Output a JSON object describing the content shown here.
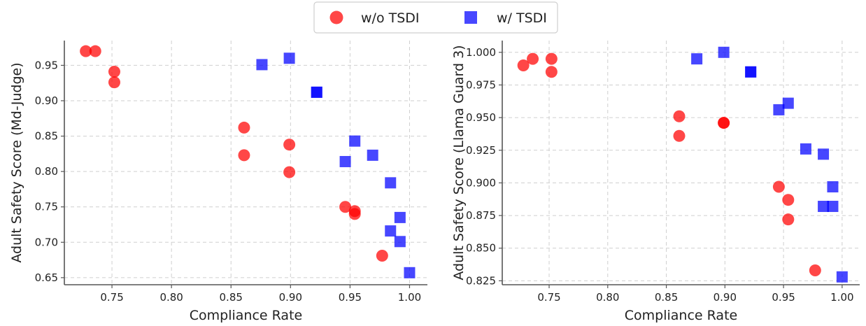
{
  "legend": {
    "items": [
      {
        "label": "w/o TSDI",
        "marker": "circle",
        "color": "#ff0000"
      },
      {
        "label": "w/ TSDI",
        "marker": "square",
        "color": "#0000ff"
      }
    ]
  },
  "chart_data": [
    {
      "type": "scatter",
      "xlabel": "Compliance Rate",
      "ylabel": "Adult Safety Score (Md-Judge)",
      "xlim": [
        0.71,
        1.015
      ],
      "ylim": [
        0.64,
        0.985
      ],
      "xticks": [
        0.75,
        0.8,
        0.85,
        0.9,
        0.95,
        1.0
      ],
      "xtick_labels": [
        "0.75",
        "0.80",
        "0.85",
        "0.90",
        "0.95",
        "1.00"
      ],
      "yticks": [
        0.65,
        0.7,
        0.75,
        0.8,
        0.85,
        0.9,
        0.95
      ],
      "ytick_labels": [
        "0.65",
        "0.70",
        "0.75",
        "0.80",
        "0.85",
        "0.90",
        "0.95"
      ],
      "grid": true,
      "series": [
        {
          "name": "w/o TSDI",
          "marker": "circle",
          "color": "#ff0000",
          "points": [
            [
              0.728,
              0.97
            ],
            [
              0.736,
              0.97
            ],
            [
              0.752,
              0.941
            ],
            [
              0.752,
              0.926
            ],
            [
              0.861,
              0.862
            ],
            [
              0.861,
              0.823
            ],
            [
              0.899,
              0.838
            ],
            [
              0.899,
              0.799
            ],
            [
              0.946,
              0.75
            ],
            [
              0.954,
              0.744
            ],
            [
              0.954,
              0.74
            ],
            [
              0.977,
              0.681
            ]
          ]
        },
        {
          "name": "w/ TSDI",
          "marker": "square",
          "color": "#0000ff",
          "points": [
            [
              0.876,
              0.951
            ],
            [
              0.899,
              0.96
            ],
            [
              0.922,
              0.912
            ],
            [
              0.922,
              0.912
            ],
            [
              0.954,
              0.843
            ],
            [
              0.946,
              0.814
            ],
            [
              0.969,
              0.823
            ],
            [
              0.984,
              0.784
            ],
            [
              0.992,
              0.735
            ],
            [
              0.984,
              0.716
            ],
            [
              0.992,
              0.701
            ],
            [
              1.0,
              0.657
            ]
          ]
        }
      ]
    },
    {
      "type": "scatter",
      "xlabel": "Compliance Rate",
      "ylabel": "Adult Safety Score (Llama Guard 3)",
      "xlim": [
        0.71,
        1.015
      ],
      "ylim": [
        0.822,
        1.009
      ],
      "xticks": [
        0.75,
        0.8,
        0.85,
        0.9,
        0.95,
        1.0
      ],
      "xtick_labels": [
        "0.75",
        "0.80",
        "0.85",
        "0.90",
        "0.95",
        "1.00"
      ],
      "yticks": [
        0.825,
        0.85,
        0.875,
        0.9,
        0.925,
        0.95,
        0.975,
        1.0
      ],
      "ytick_labels": [
        "0.825",
        "0.850",
        "0.875",
        "0.900",
        "0.925",
        "0.950",
        "0.975",
        "1.000"
      ],
      "grid": true,
      "series": [
        {
          "name": "w/o TSDI",
          "marker": "circle",
          "color": "#ff0000",
          "points": [
            [
              0.728,
              0.99
            ],
            [
              0.736,
              0.995
            ],
            [
              0.752,
              0.995
            ],
            [
              0.752,
              0.985
            ],
            [
              0.861,
              0.951
            ],
            [
              0.861,
              0.936
            ],
            [
              0.899,
              0.946
            ],
            [
              0.899,
              0.946
            ],
            [
              0.946,
              0.897
            ],
            [
              0.954,
              0.887
            ],
            [
              0.954,
              0.872
            ],
            [
              0.977,
              0.833
            ]
          ]
        },
        {
          "name": "w/ TSDI",
          "marker": "square",
          "color": "#0000ff",
          "points": [
            [
              0.876,
              0.995
            ],
            [
              0.899,
              1.0
            ],
            [
              0.922,
              0.985
            ],
            [
              0.922,
              0.985
            ],
            [
              0.954,
              0.961
            ],
            [
              0.946,
              0.956
            ],
            [
              0.969,
              0.926
            ],
            [
              0.984,
              0.922
            ],
            [
              0.992,
              0.897
            ],
            [
              0.984,
              0.882
            ],
            [
              0.992,
              0.882
            ],
            [
              1.0,
              0.828
            ]
          ]
        }
      ]
    }
  ]
}
